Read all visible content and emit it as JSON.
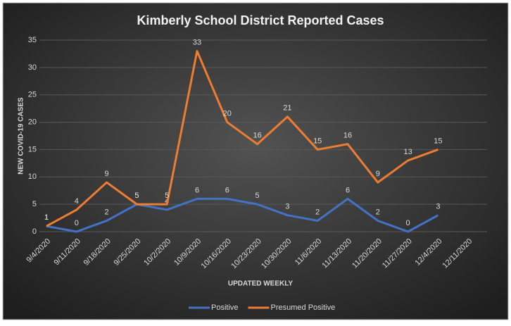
{
  "chart_data": {
    "type": "line",
    "title": "Kimberly School District Reported Cases",
    "x_label": "UPDATED WEEKLY",
    "y_label": "NEW COVID-19 CASES",
    "categories": [
      "9/4/2020",
      "9/11/2020",
      "9/18/2020",
      "9/25/2020",
      "10/2/2020",
      "10/9/2020",
      "10/16/2020",
      "10/23/2020",
      "10/30/2020",
      "11/6/2020",
      "11/13/2020",
      "11/20/2020",
      "11/27/2020",
      "12/4/2020",
      "12/11/2020"
    ],
    "series": [
      {
        "name": "Positive",
        "color": "#4472c4",
        "values": [
          1,
          0,
          2,
          5,
          4,
          6,
          6,
          5,
          3,
          2,
          6,
          2,
          0,
          3,
          null
        ]
      },
      {
        "name": "Presumed Positive",
        "color": "#ed7d31",
        "values": [
          1,
          4,
          9,
          5,
          5,
          33,
          20,
          16,
          21,
          15,
          16,
          9,
          13,
          15,
          null
        ]
      }
    ],
    "ylim": [
      0,
      35
    ],
    "yticks": [
      0,
      5,
      10,
      15,
      20,
      25,
      30,
      35
    ],
    "grid": true,
    "legend": "bottom"
  }
}
